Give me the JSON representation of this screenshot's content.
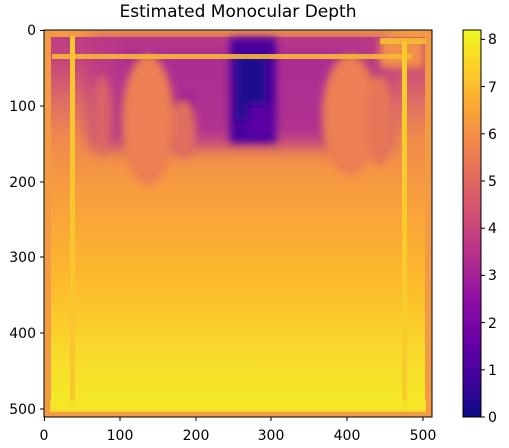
{
  "chart_data": {
    "type": "heatmap",
    "title": "Estimated Monocular Depth",
    "xlabel": "",
    "ylabel": "",
    "xlim": [
      0,
      512
    ],
    "ylim": [
      512,
      0
    ],
    "x_ticks": [
      0,
      100,
      200,
      300,
      400,
      500
    ],
    "y_ticks": [
      0,
      100,
      200,
      300,
      400,
      500
    ],
    "colorbar": {
      "colormap": "plasma",
      "range": [
        0,
        8.2
      ],
      "ticks": [
        0,
        1,
        2,
        3,
        4,
        5,
        6,
        7,
        8
      ]
    },
    "grid": false
  },
  "colors": {
    "plasma_stops": [
      "#0d0887",
      "#41049d",
      "#6a00a8",
      "#8f0da4",
      "#b12a90",
      "#cc4778",
      "#e16462",
      "#f2844b",
      "#fca636",
      "#fcce25",
      "#f0f921"
    ]
  }
}
